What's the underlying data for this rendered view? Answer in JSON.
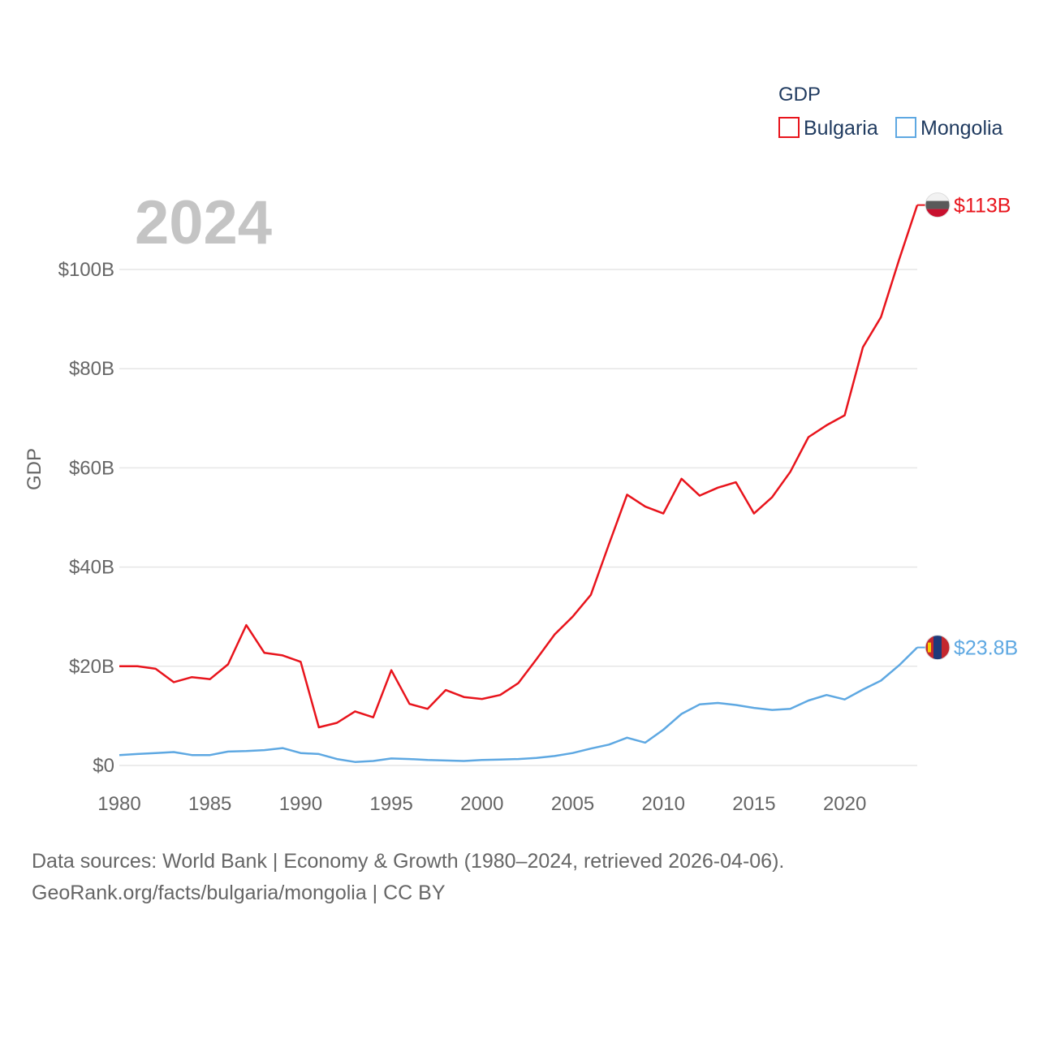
{
  "chart_data": {
    "type": "line",
    "title": "GDP",
    "year_label": "2024",
    "ylabel": "GDP",
    "xlabel": "",
    "xlim": [
      1980,
      2024
    ],
    "ylim": [
      0,
      113
    ],
    "x_ticks": [
      1980,
      1985,
      1990,
      1995,
      2000,
      2005,
      2010,
      2015,
      2020
    ],
    "x_tick_labels": [
      "1980",
      "1985",
      "1990",
      "1995",
      "2000",
      "2005",
      "2010",
      "2015",
      "2020"
    ],
    "y_ticks": [
      0,
      20,
      40,
      60,
      80,
      100
    ],
    "y_tick_labels": [
      "$0",
      "$20B",
      "$40B",
      "$60B",
      "$80B",
      "$100B"
    ],
    "legend_placement": "top-right",
    "x": [
      1980,
      1981,
      1982,
      1983,
      1984,
      1985,
      1986,
      1987,
      1988,
      1989,
      1990,
      1991,
      1992,
      1993,
      1994,
      1995,
      1996,
      1997,
      1998,
      1999,
      2000,
      2001,
      2002,
      2003,
      2004,
      2005,
      2006,
      2007,
      2008,
      2009,
      2010,
      2011,
      2012,
      2013,
      2014,
      2015,
      2016,
      2017,
      2018,
      2019,
      2020,
      2021,
      2022,
      2023,
      2024
    ],
    "series": [
      {
        "name": "Bulgaria",
        "color": "#e8141c",
        "end_label": "$113B",
        "flag_icon": "bulgaria-flag-icon",
        "values": [
          20.0,
          20.0,
          19.5,
          16.8,
          17.8,
          17.4,
          20.4,
          28.3,
          22.7,
          22.2,
          20.9,
          7.7,
          8.6,
          10.9,
          9.7,
          19.2,
          12.4,
          11.4,
          15.2,
          13.8,
          13.4,
          14.2,
          16.6,
          21.4,
          26.4,
          30.0,
          34.4,
          44.6,
          54.6,
          52.2,
          50.8,
          57.8,
          54.4,
          56.0,
          57.1,
          50.8,
          54.1,
          59.2,
          66.2,
          68.6,
          70.6,
          84.3,
          90.4,
          102.0,
          113.0
        ]
      },
      {
        "name": "Mongolia",
        "color": "#5ea8e2",
        "end_label": "$23.8B",
        "flag_icon": "mongolia-flag-icon",
        "values": [
          2.1,
          2.3,
          2.5,
          2.7,
          2.1,
          2.1,
          2.8,
          2.9,
          3.1,
          3.5,
          2.5,
          2.3,
          1.3,
          0.7,
          0.9,
          1.4,
          1.3,
          1.1,
          1.0,
          0.9,
          1.1,
          1.2,
          1.3,
          1.5,
          1.9,
          2.5,
          3.4,
          4.2,
          5.6,
          4.6,
          7.2,
          10.4,
          12.3,
          12.6,
          12.2,
          11.6,
          11.2,
          11.4,
          13.1,
          14.2,
          13.3,
          15.3,
          17.1,
          20.2,
          23.8
        ]
      }
    ]
  },
  "footer": {
    "line1": "Data sources: World Bank | Economy & Growth (1980–2024, retrieved 2026-04-06).",
    "line2": "GeoRank.org/facts/bulgaria/mongolia | CC BY"
  }
}
